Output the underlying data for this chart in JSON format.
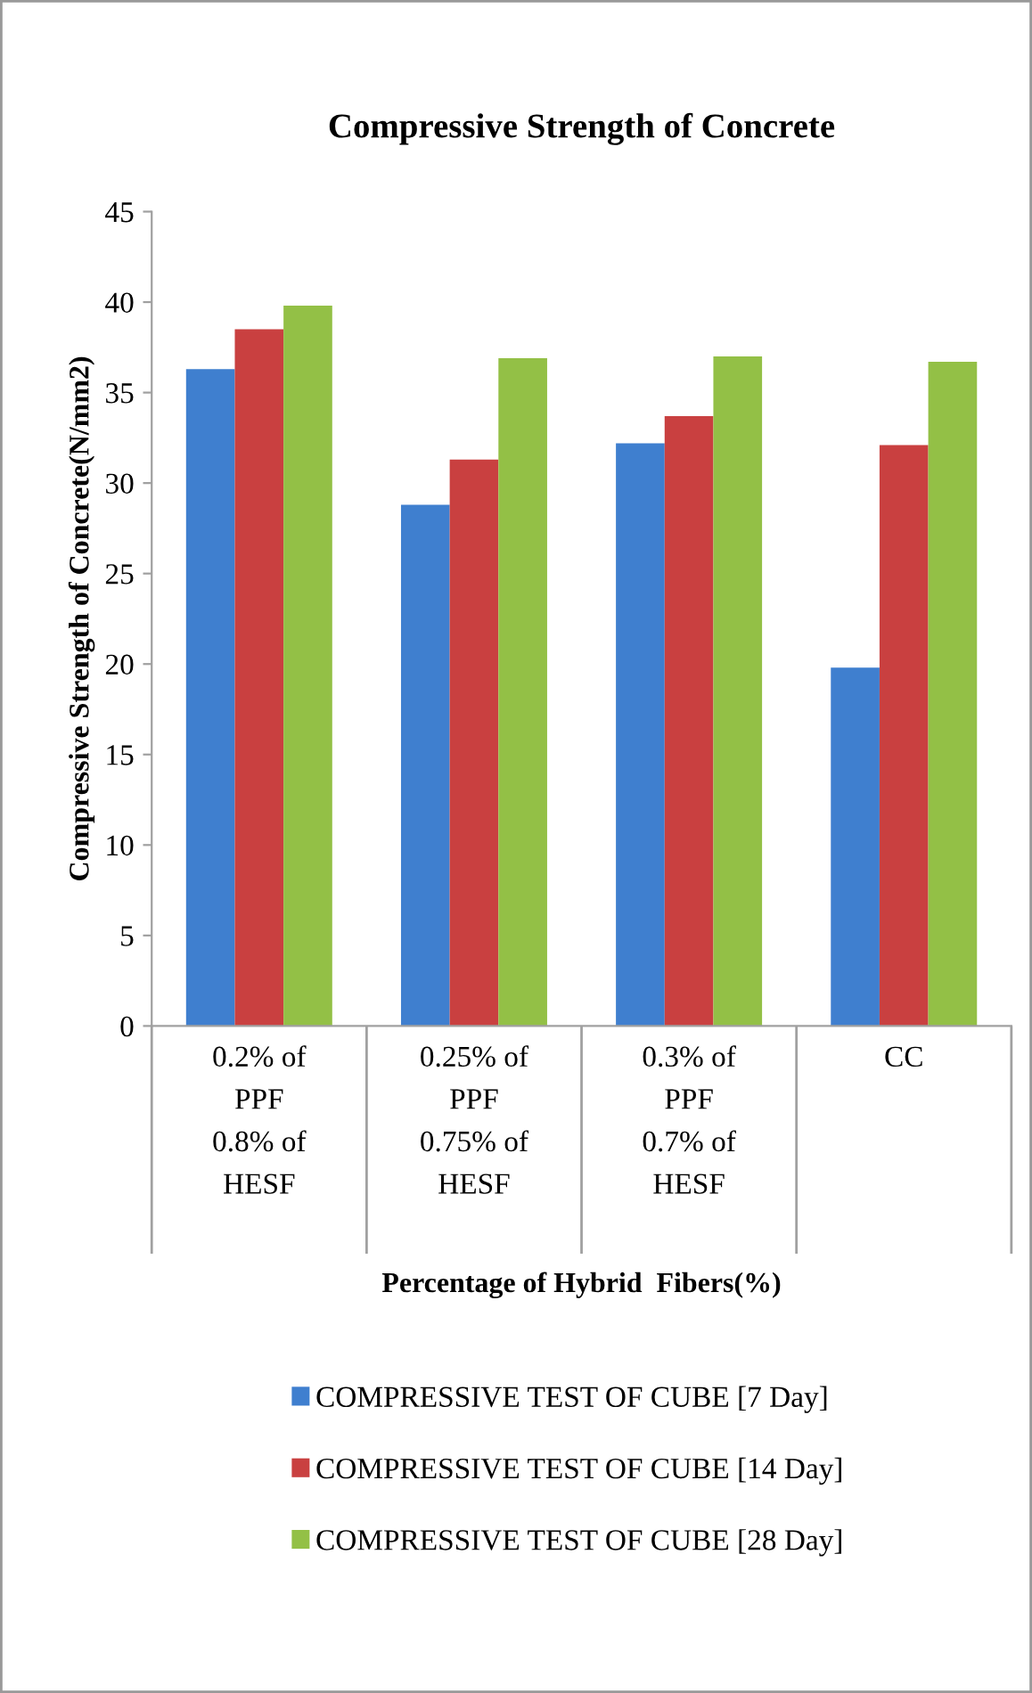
{
  "chart_data": {
    "type": "bar",
    "title": "Compressive Strength of Concrete",
    "xlabel": "Percentage of Hybrid  Fibers(%)",
    "ylabel": "Compressive Strength of Concrete(N/mm2)",
    "categories": [
      "0.2% of\nPPF\n0.8% of\nHESF",
      "0.25% of\nPPF\n0.75% of\nHESF",
      "0.3% of\nPPF\n0.7% of\nHESF",
      "CC"
    ],
    "series": [
      {
        "name": "COMPRESSIVE TEST OF CUBE [7 Day]",
        "color": "#3f7fcf",
        "values": [
          36.3,
          28.8,
          32.2,
          19.8
        ]
      },
      {
        "name": "COMPRESSIVE TEST OF CUBE [14 Day]",
        "color": "#c94040",
        "values": [
          38.5,
          31.3,
          33.7,
          32.1
        ]
      },
      {
        "name": "COMPRESSIVE TEST OF CUBE [28 Day]",
        "color": "#93c046",
        "values": [
          39.8,
          36.9,
          37.0,
          36.7
        ]
      }
    ],
    "ylim": [
      0,
      45
    ],
    "yticks": [
      0,
      5,
      10,
      15,
      20,
      25,
      30,
      35,
      40,
      45
    ],
    "grid": false,
    "legend": "bottom"
  }
}
